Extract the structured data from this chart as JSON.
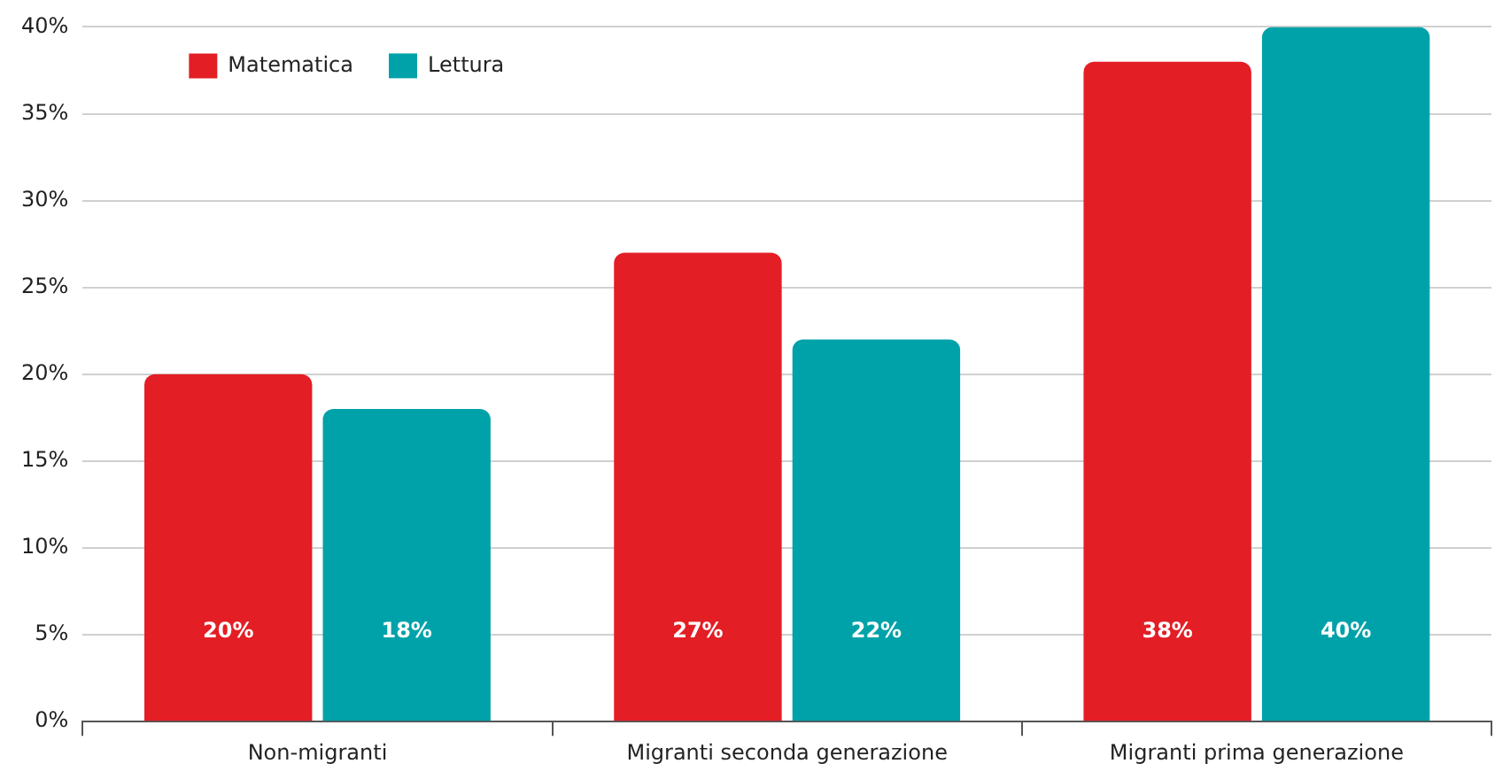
{
  "chart_data": {
    "type": "bar",
    "categories": [
      "Non-migranti",
      "Migranti seconda generazione",
      "Migranti prima generazione"
    ],
    "series": [
      {
        "name": "Matematica",
        "color": "#e31e25",
        "values": [
          20,
          27,
          38
        ],
        "value_labels": [
          "20%",
          "27%",
          "38%"
        ]
      },
      {
        "name": "Lettura",
        "color": "#00a2a9",
        "values": [
          18,
          22,
          40
        ],
        "value_labels": [
          "18%",
          "22%",
          "40%"
        ]
      }
    ],
    "ylim": [
      0,
      40
    ],
    "yticks": [
      {
        "value": 0,
        "label": "0%"
      },
      {
        "value": 5,
        "label": "5%"
      },
      {
        "value": 10,
        "label": "10%"
      },
      {
        "value": 15,
        "label": "15%"
      },
      {
        "value": 20,
        "label": "20%"
      },
      {
        "value": 25,
        "label": "25%"
      },
      {
        "value": 30,
        "label": "30%"
      },
      {
        "value": 35,
        "label": "35%"
      },
      {
        "value": 40,
        "label": "40%"
      }
    ],
    "grid": "y",
    "legend": "top left"
  }
}
